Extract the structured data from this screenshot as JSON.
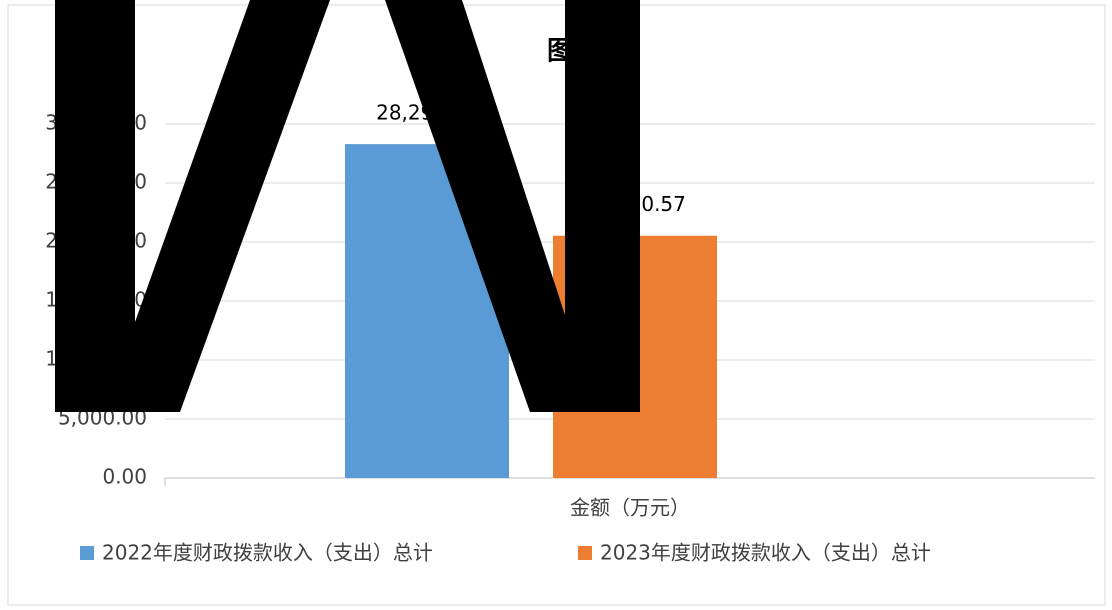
{
  "chart_data": {
    "type": "bar",
    "title": "图",
    "categories": [
      "金额（万元）"
    ],
    "series": [
      {
        "name": "2022年度财政拨款收入（支出）总计",
        "color": "#5b9bd5",
        "values": [
          28293.06
        ],
        "value_labels": [
          "28,293.06"
        ]
      },
      {
        "name": "2023年度财政拨款收入（支出）总计",
        "color": "#ed7d31",
        "values": [
          20530.57
        ],
        "value_labels": [
          "20,530.57"
        ]
      }
    ],
    "ylim": [
      0,
      35000
    ],
    "yticks": [
      {
        "value": 0,
        "label": "0.00"
      },
      {
        "value": 5000,
        "label": "5,000.00"
      },
      {
        "value": 10000,
        "label": "10,000.00"
      },
      {
        "value": 15000,
        "label": "15,000.00"
      },
      {
        "value": 20000,
        "label": "20,000.00"
      },
      {
        "value": 25000,
        "label": "25,000.00"
      },
      {
        "value": 30000,
        "label": "30,000.00"
      }
    ],
    "grid": true,
    "legend": "bottom"
  }
}
